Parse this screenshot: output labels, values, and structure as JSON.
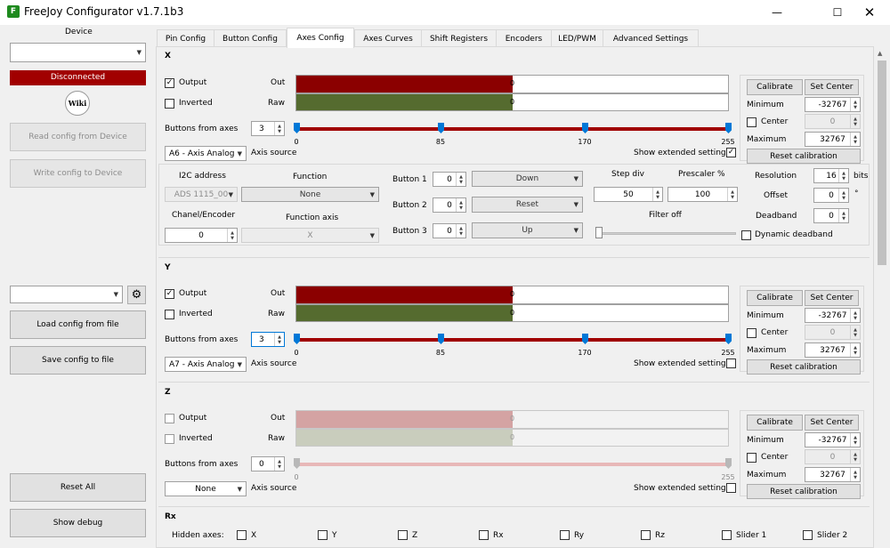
{
  "window": {
    "title": "FreeJoy Configurator v1.7.1b3",
    "icon": "freejoy-icon"
  },
  "left": {
    "device_label": "Device",
    "device_select": "",
    "status": "Disconnected",
    "status_color": "#a10000",
    "wiki": "Wiki",
    "read_btn": "Read config from Device",
    "write_btn": "Write config to Device",
    "config_select": "",
    "load_btn": "Load config from file",
    "save_btn": "Save config to file",
    "reset_btn": "Reset All",
    "debug_btn": "Show debug"
  },
  "tabs": [
    "Pin Config",
    "Button Config",
    "Axes Config",
    "Axes Curves",
    "Shift Registers",
    "Encoders",
    "LED/PWM",
    "Advanced Settings"
  ],
  "common": {
    "output": "Output",
    "inverted": "Inverted",
    "out": "Out",
    "raw": "Raw",
    "buttons_from_axes": "Buttons from axes",
    "axis_source": "Axis source",
    "show_ext": "Show extended settings",
    "calibrate": "Calibrate",
    "set_center": "Set Center",
    "minimum": "Minimum",
    "center": "Center",
    "maximum": "Maximum",
    "reset_cal": "Reset calibration",
    "ticks": [
      "0",
      "85",
      "170",
      "255"
    ]
  },
  "axes": {
    "x": {
      "name": "X",
      "out_value": "0",
      "raw_value": "0",
      "buttons": "3",
      "source": "A6 - Axis Analog",
      "min": "-32767",
      "center": "0",
      "max": "32767"
    },
    "y": {
      "name": "Y",
      "out_value": "0",
      "raw_value": "0",
      "buttons": "3",
      "source": "A7 - Axis Analog",
      "min": "-32767",
      "center": "0",
      "max": "32767"
    },
    "z": {
      "name": "Z",
      "out_value": "0",
      "raw_value": "0",
      "buttons": "0",
      "source": "None",
      "min": "-32767",
      "center": "0",
      "max": "32767"
    },
    "rx": {
      "name": "Rx"
    }
  },
  "extended": {
    "i2c_label": "I2C address",
    "i2c_value": "ADS 1115_00",
    "function_label": "Function",
    "function_value": "None",
    "chanel_label": "Chanel/Encoder",
    "chanel_value": "0",
    "function_axis_label": "Function axis",
    "function_axis_value": "X",
    "button1": "Button 1",
    "button1_val": "0",
    "button1_sel": "Down",
    "button2": "Button 2",
    "button2_val": "0",
    "button2_sel": "Reset",
    "button3": "Button 3",
    "button3_val": "0",
    "button3_sel": "Up",
    "step_div": "Step div",
    "step_div_val": "50",
    "prescaler": "Prescaler %",
    "prescaler_val": "100",
    "filter": "Filter off",
    "resolution": "Resolution",
    "resolution_val": "16",
    "bits": "bits",
    "offset": "Offset",
    "offset_val": "0",
    "degree": "°",
    "deadband": "Deadband",
    "deadband_val": "0",
    "dynamic": "Dynamic deadband"
  },
  "hidden": {
    "label": "Hidden axes:",
    "items": [
      "X",
      "Y",
      "Z",
      "Rx",
      "Ry",
      "Rz",
      "Slider 1",
      "Slider 2"
    ]
  },
  "colors": {
    "out_fill": "#8b0000",
    "raw_fill": "#556b2f",
    "slider": "#a00000"
  }
}
